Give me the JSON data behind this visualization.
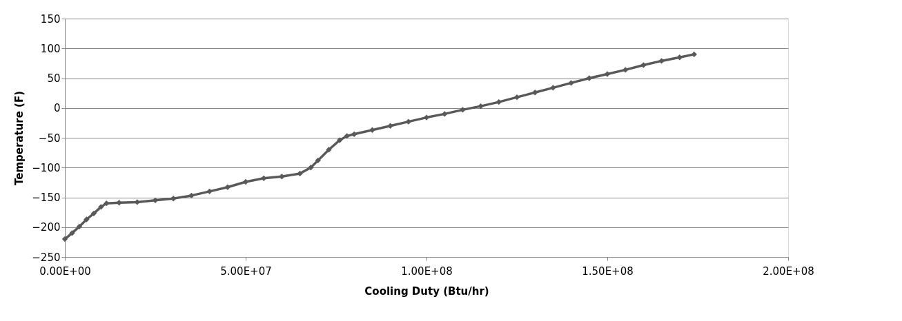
{
  "chart_data": {
    "type": "line",
    "xlabel": "Cooling Duty (Btu/hr)",
    "ylabel": "Temperature (F)",
    "x": [
      0,
      2000000,
      4000000,
      6000000,
      8000000,
      10000000,
      11500000,
      15000000,
      20000000,
      25000000,
      30000000,
      35000000,
      40000000,
      45000000,
      50000000,
      55000000,
      60000000,
      65000000,
      68000000,
      70000000,
      73000000,
      76000000,
      78000000,
      80000000,
      85000000,
      90000000,
      95000000,
      100000000,
      105000000,
      110000000,
      115000000,
      120000000,
      125000000,
      130000000,
      135000000,
      140000000,
      145000000,
      150000000,
      155000000,
      160000000,
      165000000,
      170000000,
      174000000
    ],
    "series": [
      {
        "color": "#595959",
        "values": [
          -220,
          -210,
          -199,
          -187,
          -177,
          -166,
          -160,
          -159,
          -158,
          -155,
          -152,
          -147,
          -140,
          -133,
          -124,
          -118,
          -115,
          -110,
          -100,
          -88,
          -70,
          -54,
          -47,
          -44,
          -37,
          -30,
          -23,
          -16,
          -10,
          -3,
          3,
          10,
          18,
          26,
          34,
          42,
          50,
          57,
          64,
          72,
          79,
          85,
          90
        ]
      }
    ],
    "xlim": [
      0,
      200000000
    ],
    "xticks": [
      {
        "value": 0,
        "label": "0.00E+00"
      },
      {
        "value": 50000000,
        "label": "5.00E+07"
      },
      {
        "value": 100000000,
        "label": "1.00E+08"
      },
      {
        "value": 150000000,
        "label": "1.50E+08"
      },
      {
        "value": 200000000,
        "label": "2.00E+08"
      }
    ],
    "ylim": [
      -250,
      150
    ],
    "yticks": [
      -250,
      -200,
      -150,
      -100,
      -50,
      0,
      50,
      100,
      150
    ],
    "grid": "y",
    "marker": "diamond",
    "line_style": "solid"
  }
}
